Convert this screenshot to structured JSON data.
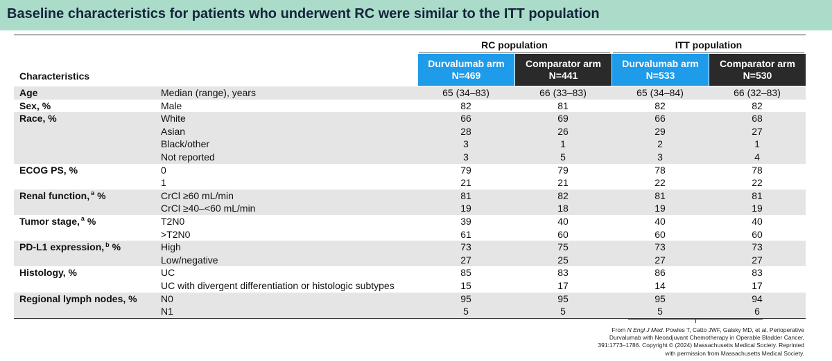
{
  "header": {
    "title": "Baseline characteristics for patients who underwent RC were similar to the ITT population"
  },
  "table": {
    "corner": "Characteristics",
    "groups": [
      {
        "label": "RC population",
        "columns": [
          {
            "name": "Durvalumab arm",
            "n": "N=469"
          },
          {
            "name": "Comparator arm",
            "n": "N=441"
          }
        ]
      },
      {
        "label": "ITT population",
        "columns": [
          {
            "name": "Durvalumab arm",
            "n": "N=533"
          },
          {
            "name": "Comparator arm",
            "n": "N=530"
          }
        ]
      }
    ],
    "rows": [
      {
        "label": {
          "text": "Age"
        },
        "items": [
          {
            "sub": "Median (range), years",
            "values": [
              "65 (34–83)",
              "66 (33–83)",
              "65 (34–84)",
              "66 (32–83)"
            ]
          }
        ]
      },
      {
        "label": {
          "text": "Sex, %"
        },
        "items": [
          {
            "sub": "Male",
            "values": [
              82,
              81,
              82,
              82
            ]
          }
        ]
      },
      {
        "label": {
          "text": "Race, %"
        },
        "items": [
          {
            "sub": "White",
            "values": [
              66,
              69,
              66,
              68
            ]
          },
          {
            "sub": "Asian",
            "values": [
              28,
              26,
              29,
              27
            ]
          },
          {
            "sub": "Black/other",
            "values": [
              3,
              1,
              2,
              1
            ]
          },
          {
            "sub": "Not reported",
            "values": [
              3,
              5,
              3,
              4
            ]
          }
        ]
      },
      {
        "label": {
          "text": "ECOG PS, %"
        },
        "items": [
          {
            "sub": "0",
            "values": [
              79,
              79,
              78,
              78
            ]
          },
          {
            "sub": "1",
            "values": [
              21,
              21,
              22,
              22
            ]
          }
        ]
      },
      {
        "label": {
          "text": "Renal function,",
          "sup": "a",
          "suffix": "%"
        },
        "items": [
          {
            "sub": "CrCl ≥60 mL/min",
            "values": [
              81,
              82,
              81,
              81
            ]
          },
          {
            "sub": "CrCl ≥40–<60 mL/min",
            "values": [
              19,
              18,
              19,
              19
            ]
          }
        ]
      },
      {
        "label": {
          "text": "Tumor stage,",
          "sup": "a",
          "suffix": "%"
        },
        "items": [
          {
            "sub": "T2N0",
            "values": [
              39,
              40,
              40,
              40
            ]
          },
          {
            "sub": ">T2N0",
            "values": [
              61,
              60,
              60,
              60
            ]
          }
        ]
      },
      {
        "label": {
          "text": "PD-L1 expression,",
          "sup": "b",
          "suffix": "%"
        },
        "items": [
          {
            "sub": "High",
            "values": [
              73,
              75,
              73,
              73
            ]
          },
          {
            "sub": "Low/negative",
            "values": [
              27,
              25,
              27,
              27
            ]
          }
        ]
      },
      {
        "label": {
          "text": "Histology, %"
        },
        "items": [
          {
            "sub": "UC",
            "values": [
              85,
              83,
              86,
              83
            ]
          },
          {
            "sub": "UC with divergent differentiation or histologic subtypes",
            "values": [
              15,
              17,
              14,
              17
            ]
          }
        ]
      },
      {
        "label": {
          "text": "Regional lymph nodes, %"
        },
        "items": [
          {
            "sub": "N0",
            "values": [
              95,
              95,
              95,
              94
            ]
          },
          {
            "sub": "N1",
            "values": [
              5,
              5,
              5,
              6
            ]
          }
        ]
      }
    ]
  },
  "footnote": {
    "prefix": "From",
    "journal": "N Engl J Med.",
    "lines": [
      "Powles T, Catto JWF, Galsky MD, et al. Perioperative",
      "Durvalumab with Neoadjuvant Chemotherapy in Operable Bladder Cancer,",
      "391:1773–1786. Copyright © (2024) Massachusetts Medical Society. Reprinted",
      "with permission from Massachusetts Medical Society."
    ]
  }
}
